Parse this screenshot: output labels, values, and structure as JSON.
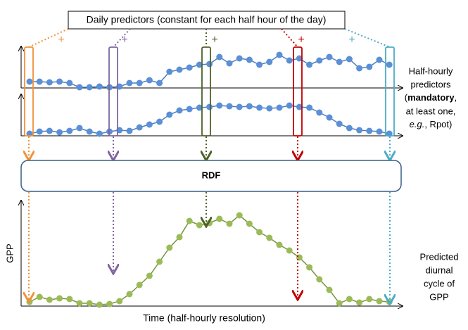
{
  "header": {
    "title": "Daily predictors (constant for each half hour of the day)"
  },
  "plus_signs": [
    "+",
    "+",
    "+",
    "+",
    "+"
  ],
  "side_note": {
    "parts": [
      "Half-hourly",
      "predictors",
      "(",
      "mandatory",
      ",",
      "at least one,",
      "e.g.",
      ", Rpot)"
    ]
  },
  "model": {
    "label": "RDF"
  },
  "output": {
    "y_label": "GPP",
    "x_label": "Time (half-hourly resolution)",
    "note": [
      "Predicted",
      "diurnal",
      "cycle of",
      "GPP"
    ]
  }
}
